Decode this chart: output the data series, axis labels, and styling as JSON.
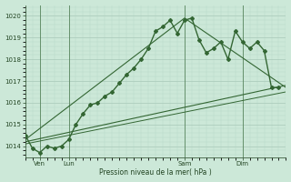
{
  "background_color": "#cce8d8",
  "grid_color_major": "#a8c8b8",
  "grid_color_minor": "#b8d8c8",
  "line_color": "#336633",
  "text_color": "#224422",
  "xlabel": "Pression niveau de la mer( hPa )",
  "ylim": [
    1013.5,
    1020.5
  ],
  "yticks": [
    1014,
    1015,
    1016,
    1017,
    1018,
    1019,
    1020
  ],
  "xlim": [
    0,
    108
  ],
  "xtick_positions": [
    6,
    18,
    66,
    90
  ],
  "xtick_labels": [
    "Ven",
    "Lun",
    "Sam",
    "Dim"
  ],
  "vline_positions": [
    6,
    18,
    66,
    90
  ],
  "main_x": [
    0,
    3,
    6,
    9,
    12,
    15,
    18,
    21,
    24,
    27,
    30,
    33,
    36,
    39,
    42,
    45,
    48,
    51,
    54,
    57,
    60,
    63,
    66,
    69,
    72,
    75,
    78,
    81,
    84,
    87,
    90,
    93,
    96,
    99,
    102,
    105
  ],
  "main_y": [
    1014.5,
    1013.9,
    1013.7,
    1014.0,
    1013.9,
    1014.0,
    1014.3,
    1015.0,
    1015.5,
    1015.9,
    1016.0,
    1016.3,
    1016.5,
    1016.9,
    1017.3,
    1017.6,
    1018.0,
    1018.5,
    1019.3,
    1019.5,
    1019.8,
    1019.2,
    1019.8,
    1019.9,
    1018.9,
    1018.3,
    1018.5,
    1018.8,
    1018.0,
    1019.3,
    1018.8,
    1018.5,
    1018.8,
    1018.4,
    1016.7,
    1016.7
  ],
  "trend1_x": [
    0,
    66,
    108
  ],
  "trend1_y": [
    1014.3,
    1019.9,
    1016.7
  ],
  "trend2_x": [
    0,
    108
  ],
  "trend2_y": [
    1014.2,
    1016.8
  ],
  "trend3_x": [
    0,
    108
  ],
  "trend3_y": [
    1014.1,
    1016.5
  ],
  "figsize": [
    3.2,
    2.0
  ],
  "dpi": 100
}
